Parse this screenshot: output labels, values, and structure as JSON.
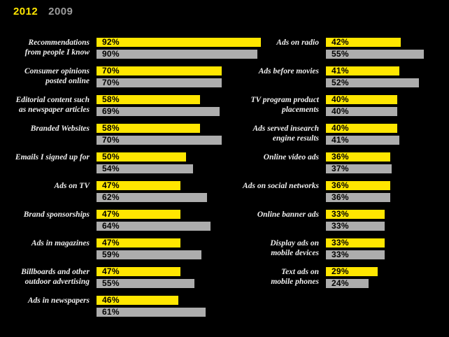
{
  "legend": {
    "year_2012": "2012",
    "year_2009": "2009"
  },
  "colors": {
    "background": "#000000",
    "bar_2012": "#ffe600",
    "bar_2009": "#adadad",
    "legend_2009": "#9c9c9c",
    "label_text": "#efefef",
    "bar_value_text": "#000000"
  },
  "chart_data": {
    "type": "bar",
    "orientation": "horizontal",
    "value_unit": "%",
    "xlim": [
      0,
      100
    ],
    "grid": false,
    "legend_position": "top-left",
    "legend_entries": [
      "2012",
      "2009"
    ],
    "columns": [
      {
        "categories": [
          "Recommendations from people I know",
          "Consumer opinions posted online",
          "Editorial content such as newspaper articles",
          "Branded Websites",
          "Emails I signed up for",
          "Ads on TV",
          "Brand sponsorships",
          "Ads in magazines",
          "Billboards and other outdoor advertising",
          "Ads in newspapers"
        ],
        "label_lines": [
          [
            "Recommendations",
            "from people I know"
          ],
          [
            "Consumer opinions",
            "posted online"
          ],
          [
            "Editorial content such",
            "as newspaper articles"
          ],
          [
            "Branded Websites"
          ],
          [
            "Emails I signed up for"
          ],
          [
            "Ads on TV"
          ],
          [
            "Brand sponsorships"
          ],
          [
            "Ads in magazines"
          ],
          [
            "Billboards and other",
            "outdoor advertising"
          ],
          [
            "Ads in newspapers"
          ]
        ],
        "series": [
          {
            "name": "2012",
            "values": [
              92,
              70,
              58,
              58,
              50,
              47,
              47,
              47,
              47,
              46
            ]
          },
          {
            "name": "2009",
            "values": [
              90,
              70,
              69,
              70,
              54,
              62,
              64,
              59,
              55,
              61
            ]
          }
        ]
      },
      {
        "categories": [
          "Ads on radio",
          "Ads before movies",
          "TV program product placements",
          "Ads served insearch engine results",
          "Online video ads",
          "Ads on social networks",
          "Online banner ads",
          "Display ads on mobile devices",
          "Text ads on mobile phones"
        ],
        "label_lines": [
          [
            "Ads on radio"
          ],
          [
            "Ads before movies"
          ],
          [
            "TV program product",
            "placements"
          ],
          [
            "Ads served insearch",
            "engine results"
          ],
          [
            "Online video ads"
          ],
          [
            "Ads on social networks"
          ],
          [
            "Online banner ads"
          ],
          [
            "Display ads on",
            "mobile devices"
          ],
          [
            "Text ads on",
            "mobile phones"
          ]
        ],
        "series": [
          {
            "name": "2012",
            "values": [
              42,
              41,
              40,
              40,
              36,
              36,
              33,
              33,
              29
            ]
          },
          {
            "name": "2009",
            "values": [
              55,
              52,
              40,
              41,
              37,
              36,
              33,
              33,
              24
            ]
          }
        ]
      }
    ]
  }
}
